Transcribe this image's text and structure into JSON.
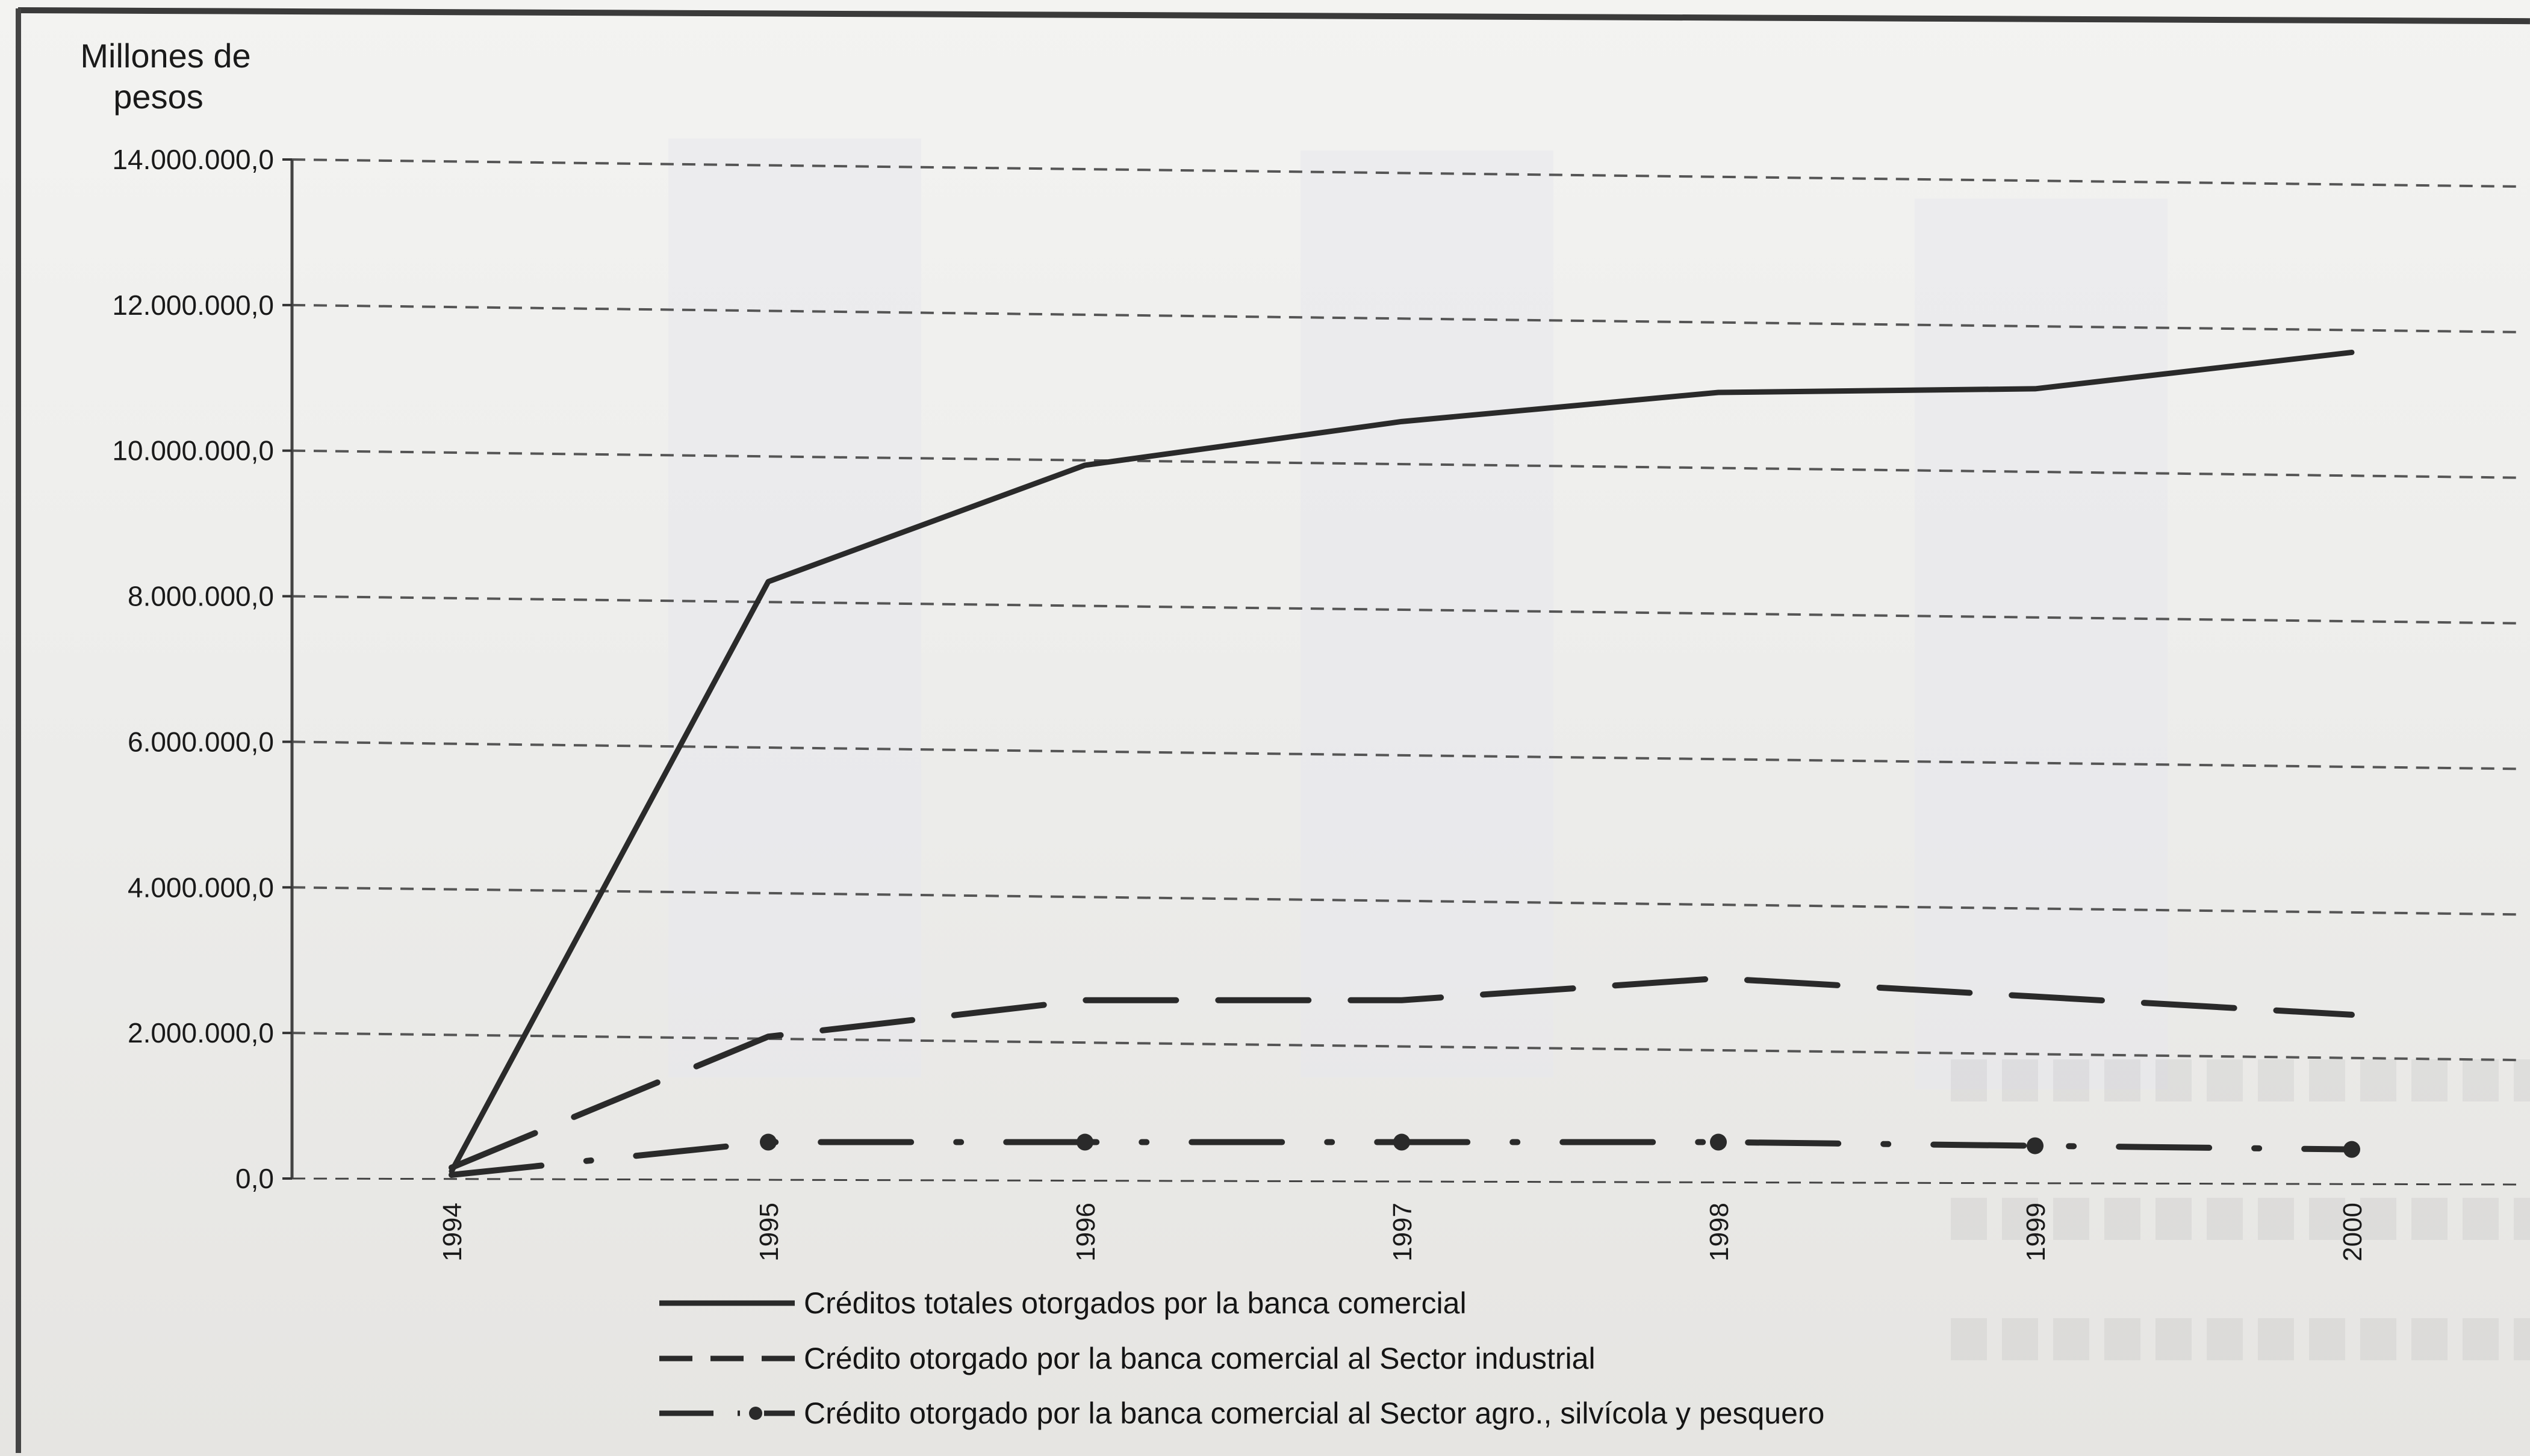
{
  "chart_data": {
    "type": "line",
    "title": "",
    "ylabel_lines": [
      "Millones de",
      "pesos"
    ],
    "xlabel": "",
    "categories": [
      "1994",
      "1995",
      "1996",
      "1997",
      "1998",
      "1999",
      "2000"
    ],
    "ylim": [
      0,
      14000000
    ],
    "yticks": [
      0,
      2000000,
      4000000,
      6000000,
      8000000,
      10000000,
      12000000,
      14000000
    ],
    "ytick_labels": [
      "0,0",
      "2.000.000,0",
      "4.000.000,0",
      "6.000.000,0",
      "8.000.000,0",
      "10.000.000,0",
      "12.000.000,0",
      "14.000.000,0"
    ],
    "grid": "horizontal dashed",
    "legend_position": "bottom",
    "series": [
      {
        "name": "Créditos totales otorgados  por la banca comercial",
        "style": "solid",
        "color": "#2a2a2a",
        "values": [
          100000,
          8200000,
          9800000,
          10400000,
          10800000,
          10850000,
          11350000
        ]
      },
      {
        "name": "Crédito otorgado  por la banca comercial al Sector industrial",
        "style": "dashed",
        "color": "#2a2a2a",
        "values": [
          150000,
          1950000,
          2450000,
          2450000,
          2750000,
          2500000,
          2250000
        ]
      },
      {
        "name": "Crédito otorgado  por la banca comercial al Sector agro., silvícola y pesquero",
        "style": "dash-dot",
        "color": "#2a2a2a",
        "values": [
          50000,
          500000,
          500000,
          500000,
          500000,
          450000,
          400000
        ]
      }
    ]
  }
}
